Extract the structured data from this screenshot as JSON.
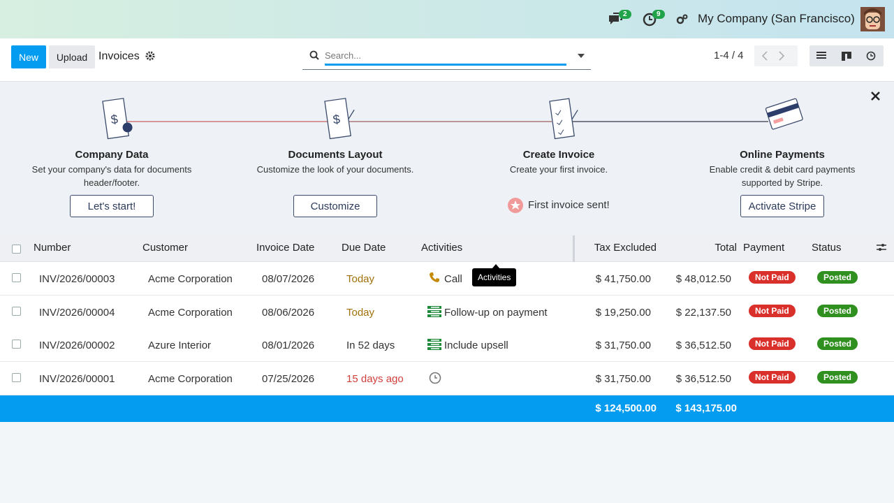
{
  "navbar": {
    "messages_count": 2,
    "activities_count": 9,
    "company": "My Company (San Francisco)"
  },
  "control_panel": {
    "new": "New",
    "upload": "Upload",
    "title": "Invoices",
    "search_placeholder": "Search...",
    "pager": "1-4 / 4"
  },
  "onboarding": {
    "steps": [
      {
        "title": "Company Data",
        "description": "Set your company's data for documents header/footer.",
        "button": "Let's start!"
      },
      {
        "title": "Documents Layout",
        "description": "Customize the look of your documents.",
        "button": "Customize"
      },
      {
        "title": "Create Invoice",
        "description": "Create your first invoice.",
        "done": "First invoice sent!"
      },
      {
        "title": "Online Payments",
        "description": "Enable credit & debit card payments supported by Stripe.",
        "button": "Activate Stripe"
      }
    ]
  },
  "table": {
    "headers": [
      "Number",
      "Customer",
      "Invoice Date",
      "Due Date",
      "Activities",
      "Tax Excluded",
      "Total",
      "Payment",
      "Status"
    ],
    "rows": [
      {
        "number": "INV/2026/00003",
        "customer": "Acme Corporation",
        "invoice_date": "08/07/2026",
        "due_date": "Today",
        "activity": "Call",
        "tax_excluded": "$ 41,750.00",
        "total": "$ 48,012.50",
        "payment": "Not Paid",
        "status": "Posted"
      },
      {
        "number": "INV/2026/00004",
        "customer": "Acme Corporation",
        "invoice_date": "08/06/2026",
        "due_date": "Today",
        "activity": "Follow-up on payment",
        "tax_excluded": "$ 19,250.00",
        "total": "$ 22,137.50",
        "payment": "Not Paid",
        "status": "Posted"
      },
      {
        "number": "INV/2026/00002",
        "customer": "Azure Interior",
        "invoice_date": "08/01/2026",
        "due_date": "In 52 days",
        "activity": "Include upsell",
        "tax_excluded": "$ 31,750.00",
        "total": "$ 36,512.50",
        "payment": "Not Paid",
        "status": "Posted"
      },
      {
        "number": "INV/2026/00001",
        "customer": "Acme Corporation",
        "invoice_date": "07/25/2026",
        "due_date": "15 days ago",
        "tax_excluded": "$ 31,750.00",
        "total": "$ 36,512.50",
        "payment": "Not Paid",
        "status": "Posted"
      }
    ],
    "totals": {
      "tax_excluded": "$ 124,500.00",
      "total": "$ 143,175.00"
    }
  },
  "tooltip": "Activities"
}
